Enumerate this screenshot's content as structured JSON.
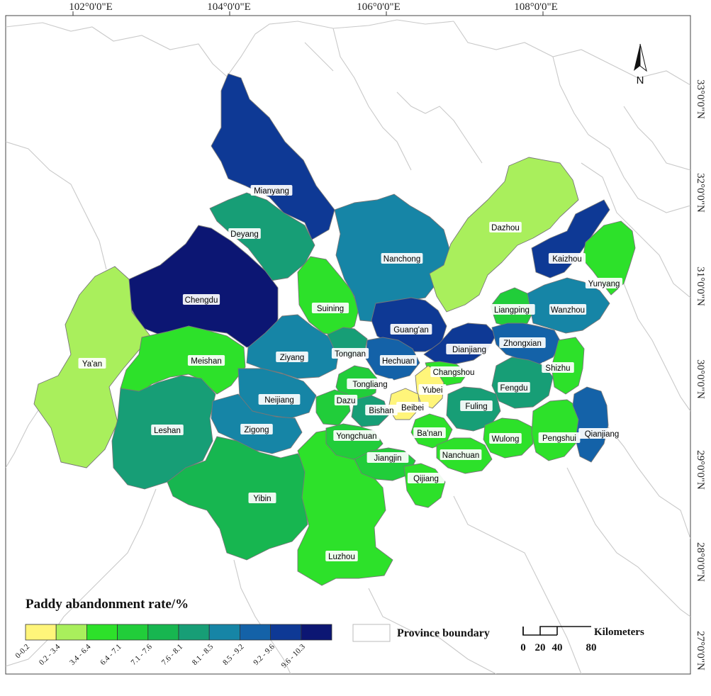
{
  "axes": {
    "longitude_ticks": [
      "102°0'0\"E",
      "104°0'0\"E",
      "106°0'0\"E",
      "108°0'0\"E"
    ],
    "latitude_ticks": [
      "33°0'0\"N",
      "32°0'0\"N",
      "31°0'0\"N",
      "30°0'0\"N",
      "29°0'0\"N",
      "28°0'0\"N",
      "27°0'0\"N"
    ]
  },
  "north_arrow": {
    "label": "N"
  },
  "legend": {
    "title": "Paddy abandonment rate/%",
    "classes": [
      {
        "label": "0-0.2",
        "color": "#fff57a"
      },
      {
        "label": "0.2 - 3.4",
        "color": "#a9ef5c"
      },
      {
        "label": "3.4 - 6.4",
        "color": "#2de12a"
      },
      {
        "label": "6.4 - 7.1",
        "color": "#21cd3a"
      },
      {
        "label": "7.1 - 7.6",
        "color": "#17b650"
      },
      {
        "label": "7.6 - 8.1",
        "color": "#179e76"
      },
      {
        "label": "8.1 - 8.5",
        "color": "#1685a6"
      },
      {
        "label": "8.5 - 9.2",
        "color": "#1462a8"
      },
      {
        "label": "9.2 - 9.6",
        "color": "#0e3995"
      },
      {
        "label": "9.6 - 10.3",
        "color": "#0c1673"
      }
    ],
    "boundary_label": "Province boundary"
  },
  "scale_bar": {
    "ticks": [
      "0",
      "20",
      "40",
      "80"
    ],
    "unit": "Kilometers"
  },
  "regions": [
    {
      "name": "Mianyang",
      "class": 8
    },
    {
      "name": "Deyang",
      "class": 5
    },
    {
      "name": "Chengdu",
      "class": 9
    },
    {
      "name": "Ya'an",
      "class": 1
    },
    {
      "name": "Meishan",
      "class": 2
    },
    {
      "name": "Leshan",
      "class": 5
    },
    {
      "name": "Ziyang",
      "class": 6
    },
    {
      "name": "Neijiang",
      "class": 6
    },
    {
      "name": "Zigong",
      "class": 6
    },
    {
      "name": "Yibin",
      "class": 4
    },
    {
      "name": "Luzhou",
      "class": 2
    },
    {
      "name": "Suining",
      "class": 2
    },
    {
      "name": "Nanchong",
      "class": 6
    },
    {
      "name": "Guang'an",
      "class": 8
    },
    {
      "name": "Dazhou",
      "class": 1
    },
    {
      "name": "Kaizhou",
      "class": 8
    },
    {
      "name": "Yunyang",
      "class": 2
    },
    {
      "name": "Liangping",
      "class": 3
    },
    {
      "name": "Wanzhou",
      "class": 6
    },
    {
      "name": "Dianjiang",
      "class": 8
    },
    {
      "name": "Zhongxian",
      "class": 7
    },
    {
      "name": "Tongnan",
      "class": 5
    },
    {
      "name": "Hechuan",
      "class": 7
    },
    {
      "name": "Changshou",
      "class": 2
    },
    {
      "name": "Tongliang",
      "class": 3
    },
    {
      "name": "Yubei",
      "class": 0
    },
    {
      "name": "Dazu",
      "class": 3
    },
    {
      "name": "Bishan",
      "class": 5
    },
    {
      "name": "Beibei",
      "class": 0
    },
    {
      "name": "Shizhu",
      "class": 2
    },
    {
      "name": "Fengdu",
      "class": 5
    },
    {
      "name": "Fuling",
      "class": 5
    },
    {
      "name": "Yongchuan",
      "class": 3
    },
    {
      "name": "Ba'nan",
      "class": 2
    },
    {
      "name": "Jiangjin",
      "class": 3
    },
    {
      "name": "Nanchuan",
      "class": 2
    },
    {
      "name": "Wulong",
      "class": 2
    },
    {
      "name": "Pengshui",
      "class": 2
    },
    {
      "name": "Qianjiang",
      "class": 7
    },
    {
      "name": "Qijiang",
      "class": 2
    }
  ]
}
